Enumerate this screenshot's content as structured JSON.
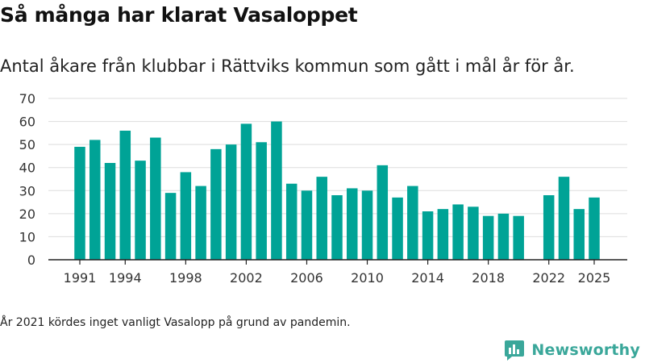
{
  "header": {
    "title": "Så många har klarat Vasaloppet",
    "subtitle": "Antal åkare från klubbar i Rättviks kommun som gått i mål år för år."
  },
  "footer": {
    "note": "År 2021 kördes inget vanligt Vasalopp på grund av pandemin.",
    "brand": "Newsworthy"
  },
  "colors": {
    "bar": "#00a396",
    "grid": "#dddddd",
    "axis": "#222222",
    "brand": "#3aa79a"
  },
  "chart_data": {
    "type": "bar",
    "title": "Så många har klarat Vasaloppet",
    "subtitle": "Antal åkare från klubbar i Rättviks kommun som gått i mål år för år.",
    "x": [
      1991,
      1992,
      1993,
      1994,
      1995,
      1996,
      1997,
      1998,
      1999,
      2000,
      2001,
      2002,
      2003,
      2004,
      2005,
      2006,
      2007,
      2008,
      2009,
      2010,
      2011,
      2012,
      2013,
      2014,
      2015,
      2016,
      2017,
      2018,
      2019,
      2020,
      2021,
      2022,
      2023,
      2024,
      2025
    ],
    "values": [
      49,
      52,
      42,
      56,
      43,
      53,
      29,
      38,
      32,
      48,
      50,
      59,
      51,
      60,
      33,
      30,
      36,
      28,
      31,
      30,
      41,
      27,
      32,
      21,
      22,
      24,
      23,
      19,
      20,
      19,
      null,
      28,
      36,
      22,
      27
    ],
    "xticks": [
      "1991",
      "1994",
      "1998",
      "2002",
      "2006",
      "2010",
      "2014",
      "2018",
      "2022",
      "2025"
    ],
    "yticks": [
      "0",
      "10",
      "20",
      "30",
      "40",
      "50",
      "60",
      "70"
    ],
    "ylim": [
      0,
      70
    ],
    "xlabel": "",
    "ylabel": "",
    "grid": true
  }
}
